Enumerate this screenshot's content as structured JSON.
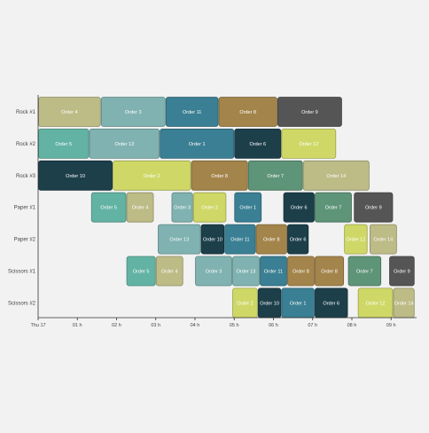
{
  "chart_data": {
    "type": "gantt",
    "title": "",
    "xlabel": "",
    "ylabel": "",
    "lanes": [
      "Rock #1",
      "Rock #2",
      "Rock #3",
      "Paper #1",
      "Paper #2",
      "Scissors #1",
      "Scissors #2"
    ],
    "x_ticks": [
      {
        "label": "Thu 17",
        "value": 0
      },
      {
        "label": "01 h",
        "value": 1
      },
      {
        "label": "02 h",
        "value": 2
      },
      {
        "label": "03 h",
        "value": 3
      },
      {
        "label": "04 h",
        "value": 4
      },
      {
        "label": "05 h",
        "value": 5
      },
      {
        "label": "06 h",
        "value": 6
      },
      {
        "label": "07 h",
        "value": 7
      },
      {
        "label": "08 h",
        "value": 8
      },
      {
        "label": "09 h",
        "value": 9
      }
    ],
    "xlim": [
      0,
      9.65
    ],
    "colors": {
      "Order 1": "#3a7f93",
      "Order 2": "#cfd867",
      "Order 3": "#7fb2b0",
      "Order 4": "#bdbb86",
      "Order 5": "#62b3a3",
      "Order 6": "#1c3f4a",
      "Order 7": "#5e9478",
      "Order 8": "#a3844a",
      "Order 9": "#555555",
      "Order 10": "#1c3f4a",
      "Order 11": "#3a7f93",
      "Order 12": "#cfd867",
      "Order 13": "#7fb2b0",
      "Order 14": "#bdbb86"
    },
    "tasks": [
      {
        "lane": "Rock #1",
        "label": "Order 4",
        "start": 0.0,
        "end": 1.6
      },
      {
        "lane": "Rock #1",
        "label": "Order 3",
        "start": 1.6,
        "end": 3.25
      },
      {
        "lane": "Rock #1",
        "label": "Order 11",
        "start": 3.25,
        "end": 4.6
      },
      {
        "lane": "Rock #1",
        "label": "Order 8",
        "start": 4.6,
        "end": 6.1
      },
      {
        "lane": "Rock #1",
        "label": "Order 9",
        "start": 6.1,
        "end": 7.75
      },
      {
        "lane": "Rock #2",
        "label": "Order 5",
        "start": 0.0,
        "end": 1.3
      },
      {
        "lane": "Rock #2",
        "label": "Order 13",
        "start": 1.3,
        "end": 3.1
      },
      {
        "lane": "Rock #2",
        "label": "Order 1",
        "start": 3.1,
        "end": 5.0
      },
      {
        "lane": "Rock #2",
        "label": "Order 6",
        "start": 5.0,
        "end": 6.2
      },
      {
        "lane": "Rock #2",
        "label": "Order 12",
        "start": 6.2,
        "end": 7.6
      },
      {
        "lane": "Rock #3",
        "label": "Order 10",
        "start": 0.0,
        "end": 1.9
      },
      {
        "lane": "Rock #3",
        "label": "Order 2",
        "start": 1.9,
        "end": 3.9
      },
      {
        "lane": "Rock #3",
        "label": "Order 8",
        "start": 3.9,
        "end": 5.35
      },
      {
        "lane": "Rock #3",
        "label": "Order 7",
        "start": 5.35,
        "end": 6.75
      },
      {
        "lane": "Rock #3",
        "label": "Order 14",
        "start": 6.75,
        "end": 8.45
      },
      {
        "lane": "Paper #1",
        "label": "Order 5",
        "start": 1.35,
        "end": 2.25
      },
      {
        "lane": "Paper #1",
        "label": "Order 4",
        "start": 2.25,
        "end": 2.95
      },
      {
        "lane": "Paper #1",
        "label": "Order 3",
        "start": 3.4,
        "end": 3.95
      },
      {
        "lane": "Paper #1",
        "label": "Order 2",
        "start": 3.95,
        "end": 4.8
      },
      {
        "lane": "Paper #1",
        "label": "Order 1",
        "start": 5.0,
        "end": 5.7
      },
      {
        "lane": "Paper #1",
        "label": "Order 6",
        "start": 6.25,
        "end": 7.05
      },
      {
        "lane": "Paper #1",
        "label": "Order 7",
        "start": 7.05,
        "end": 8.0
      },
      {
        "lane": "Paper #1",
        "label": "Order 9",
        "start": 8.05,
        "end": 9.05
      },
      {
        "lane": "Paper #2",
        "label": "Order 13",
        "start": 3.05,
        "end": 4.15
      },
      {
        "lane": "Paper #2",
        "label": "Order 10",
        "start": 4.15,
        "end": 4.75
      },
      {
        "lane": "Paper #2",
        "label": "Order 11",
        "start": 4.75,
        "end": 5.55
      },
      {
        "lane": "Paper #2",
        "label": "Order 8",
        "start": 5.55,
        "end": 6.35
      },
      {
        "lane": "Paper #2",
        "label": "Order 6",
        "start": 6.35,
        "end": 6.9
      },
      {
        "lane": "Paper #2",
        "label": "Order 12",
        "start": 7.8,
        "end": 8.4
      },
      {
        "lane": "Paper #2",
        "label": "Order 14",
        "start": 8.45,
        "end": 9.15
      },
      {
        "lane": "Scissors #1",
        "label": "Order 5",
        "start": 2.25,
        "end": 3.0
      },
      {
        "lane": "Scissors #1",
        "label": "Order 4",
        "start": 3.0,
        "end": 3.7
      },
      {
        "lane": "Scissors #1",
        "label": "Order 3",
        "start": 4.0,
        "end": 4.95
      },
      {
        "lane": "Scissors #1",
        "label": "Order 13",
        "start": 4.95,
        "end": 5.65
      },
      {
        "lane": "Scissors #1",
        "label": "Order 11",
        "start": 5.65,
        "end": 6.35
      },
      {
        "lane": "Scissors #1",
        "label": "Order 8",
        "start": 6.35,
        "end": 7.05
      },
      {
        "lane": "Scissors #1",
        "label": "Order 8",
        "start": 7.05,
        "end": 7.8
      },
      {
        "lane": "Scissors #1",
        "label": "Order 7",
        "start": 7.9,
        "end": 8.75
      },
      {
        "lane": "Scissors #1",
        "label": "Order 9",
        "start": 8.95,
        "end": 9.6
      },
      {
        "lane": "Scissors #2",
        "label": "Order 2",
        "start": 4.95,
        "end": 5.6
      },
      {
        "lane": "Scissors #2",
        "label": "Order 10",
        "start": 5.6,
        "end": 6.2
      },
      {
        "lane": "Scissors #2",
        "label": "Order 1",
        "start": 6.2,
        "end": 7.05
      },
      {
        "lane": "Scissors #2",
        "label": "Order 6",
        "start": 7.05,
        "end": 7.9
      },
      {
        "lane": "Scissors #2",
        "label": "Order 12",
        "start": 8.15,
        "end": 9.05
      },
      {
        "lane": "Scissors #2",
        "label": "Order 14",
        "start": 9.05,
        "end": 9.6
      }
    ]
  }
}
